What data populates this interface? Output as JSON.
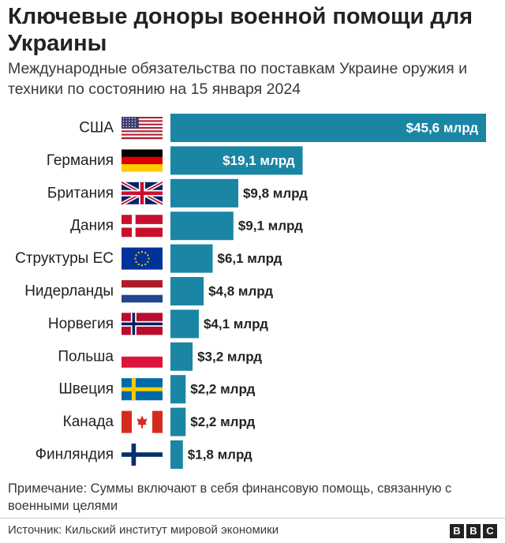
{
  "title": "Ключевые доноры военной помощи для Украины",
  "subtitle": "Международные обязательства по поставкам Украине оружия и техники по состоянию на 15 января 2024",
  "note": "Примечание: Суммы включают в себя финансовую помощь, связанную с военными целями",
  "source": "Источник: Кильский институт мировой экономики",
  "logo": [
    "B",
    "B",
    "C"
  ],
  "colors": {
    "bar": "#1a86a4",
    "label_inside": "#ffffff",
    "label_outside": "#222222"
  },
  "chart_data": {
    "type": "bar",
    "orientation": "horizontal",
    "unit": "млрд долларов",
    "categories": [
      "США",
      "Германия",
      "Британия",
      "Дания",
      "Структуры ЕС",
      "Нидерланды",
      "Норвегия",
      "Польша",
      "Швеция",
      "Канада",
      "Финляндия"
    ],
    "values": [
      45.6,
      19.1,
      9.8,
      9.1,
      6.1,
      4.8,
      4.1,
      3.2,
      2.2,
      2.2,
      1.8
    ],
    "labels": [
      "$45,6 млрд",
      "$19,1 млрд",
      "$9,8 млрд",
      "$9,1 млрд",
      "$6,1 млрд",
      "$4,8 млрд",
      "$4,1 млрд",
      "$3,2 млрд",
      "$2,2 млрд",
      "$2,2 млрд",
      "$1,8 млрд"
    ],
    "flags": [
      "us-flag-icon",
      "germany-flag-icon",
      "uk-flag-icon",
      "denmark-flag-icon",
      "eu-flag-icon",
      "netherlands-flag-icon",
      "norway-flag-icon",
      "poland-flag-icon",
      "sweden-flag-icon",
      "canada-flag-icon",
      "finland-flag-icon"
    ],
    "xlim": [
      0,
      45.6
    ],
    "grid": false,
    "legend": "none"
  }
}
